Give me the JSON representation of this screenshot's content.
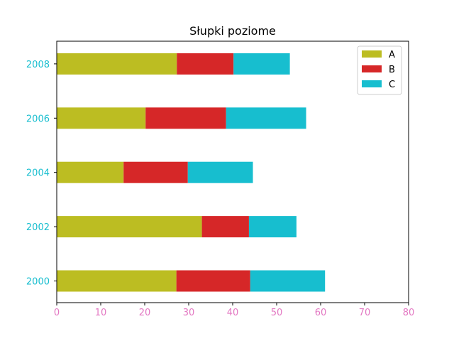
{
  "chart_data": {
    "type": "bar",
    "orientation": "horizontal",
    "stacked": true,
    "title": "Słupki poziome",
    "xlabel": "",
    "ylabel": "",
    "categories": [
      "2000",
      "2002",
      "2004",
      "2006",
      "2008"
    ],
    "series": [
      {
        "name": "A",
        "color": "#bcbd22",
        "values": [
          27.2,
          33.0,
          15.2,
          20.2,
          27.3
        ]
      },
      {
        "name": "B",
        "color": "#d62728",
        "values": [
          16.8,
          10.7,
          14.6,
          18.3,
          12.9
        ]
      },
      {
        "name": "C",
        "color": "#17becf",
        "values": [
          17.0,
          10.8,
          14.8,
          18.2,
          12.8
        ]
      }
    ],
    "xlim": [
      0,
      80
    ],
    "xticks": [
      "0",
      "10",
      "20",
      "30",
      "40",
      "50",
      "60",
      "70",
      "80"
    ],
    "xtick_color": "#e377c2",
    "ytick_color": "#17becf",
    "grid": false,
    "legend_position": "top-right"
  }
}
